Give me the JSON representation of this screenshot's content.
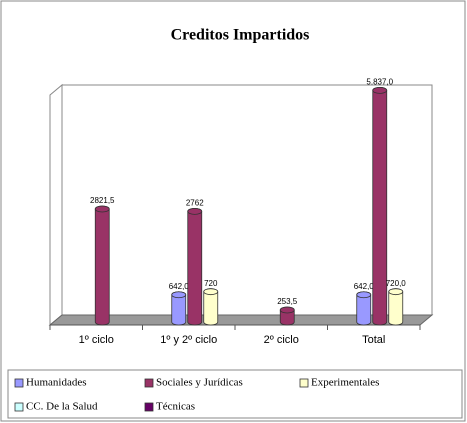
{
  "chart_data": {
    "type": "bar3d",
    "title": "Creditos Impartidos",
    "categories": [
      "1º ciclo",
      "1º y 2º ciclo",
      "2º ciclo",
      "Total"
    ],
    "series": [
      {
        "name": "Humanidades",
        "color": "#9999ff",
        "values": [
          null,
          642,
          null,
          642
        ],
        "value_labels": [
          null,
          "642,0",
          null,
          "642,0"
        ]
      },
      {
        "name": "Sociales y Jurídicas",
        "color": "#993366",
        "values": [
          2821.5,
          2762,
          253.5,
          5837
        ],
        "value_labels": [
          "2821,5",
          "2762",
          "253,5",
          "5.837,0"
        ]
      },
      {
        "name": "Experimentales",
        "color": "#ffffcc",
        "values": [
          null,
          720,
          null,
          720
        ],
        "value_labels": [
          null,
          "720",
          null,
          "720,0"
        ]
      },
      {
        "name": "CC. De la Salud",
        "color": "#ccffff",
        "values": [
          null,
          null,
          null,
          null
        ]
      },
      {
        "name": "Técnicas",
        "color": "#660066",
        "values": [
          null,
          null,
          null,
          null
        ]
      }
    ],
    "ylim": [
      0,
      6000
    ],
    "legend": "bottom"
  }
}
